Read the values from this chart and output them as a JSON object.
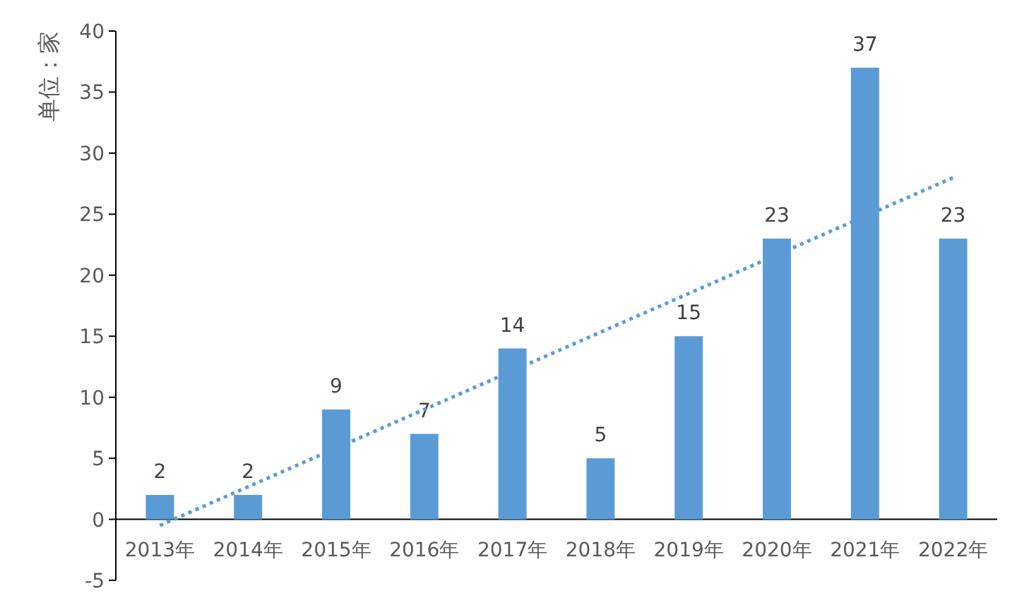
{
  "chart_data": {
    "type": "bar",
    "ylabel": "单位：家",
    "categories": [
      "2013年",
      "2014年",
      "2015年",
      "2016年",
      "2017年",
      "2018年",
      "2019年",
      "2020年",
      "2021年",
      "2022年"
    ],
    "series": [
      {
        "color": "#5b9bd5",
        "values": [
          2,
          2,
          9,
          7,
          14,
          5,
          15,
          23,
          37,
          23
        ],
        "value_labels": [
          "2",
          "2",
          "9",
          "7",
          "14",
          "5",
          "15",
          "23",
          "37",
          "23"
        ]
      },
      {
        "type": "line",
        "x": [
          "2013年",
          "2022年"
        ],
        "values": [
          -0.5,
          28
        ],
        "color": "#5b9bd5",
        "line_style": "dotted"
      }
    ],
    "ylim": [
      -5,
      40
    ],
    "yticks": [
      -5,
      0,
      5,
      10,
      15,
      20,
      25,
      30,
      35,
      40
    ],
    "grid": false
  }
}
